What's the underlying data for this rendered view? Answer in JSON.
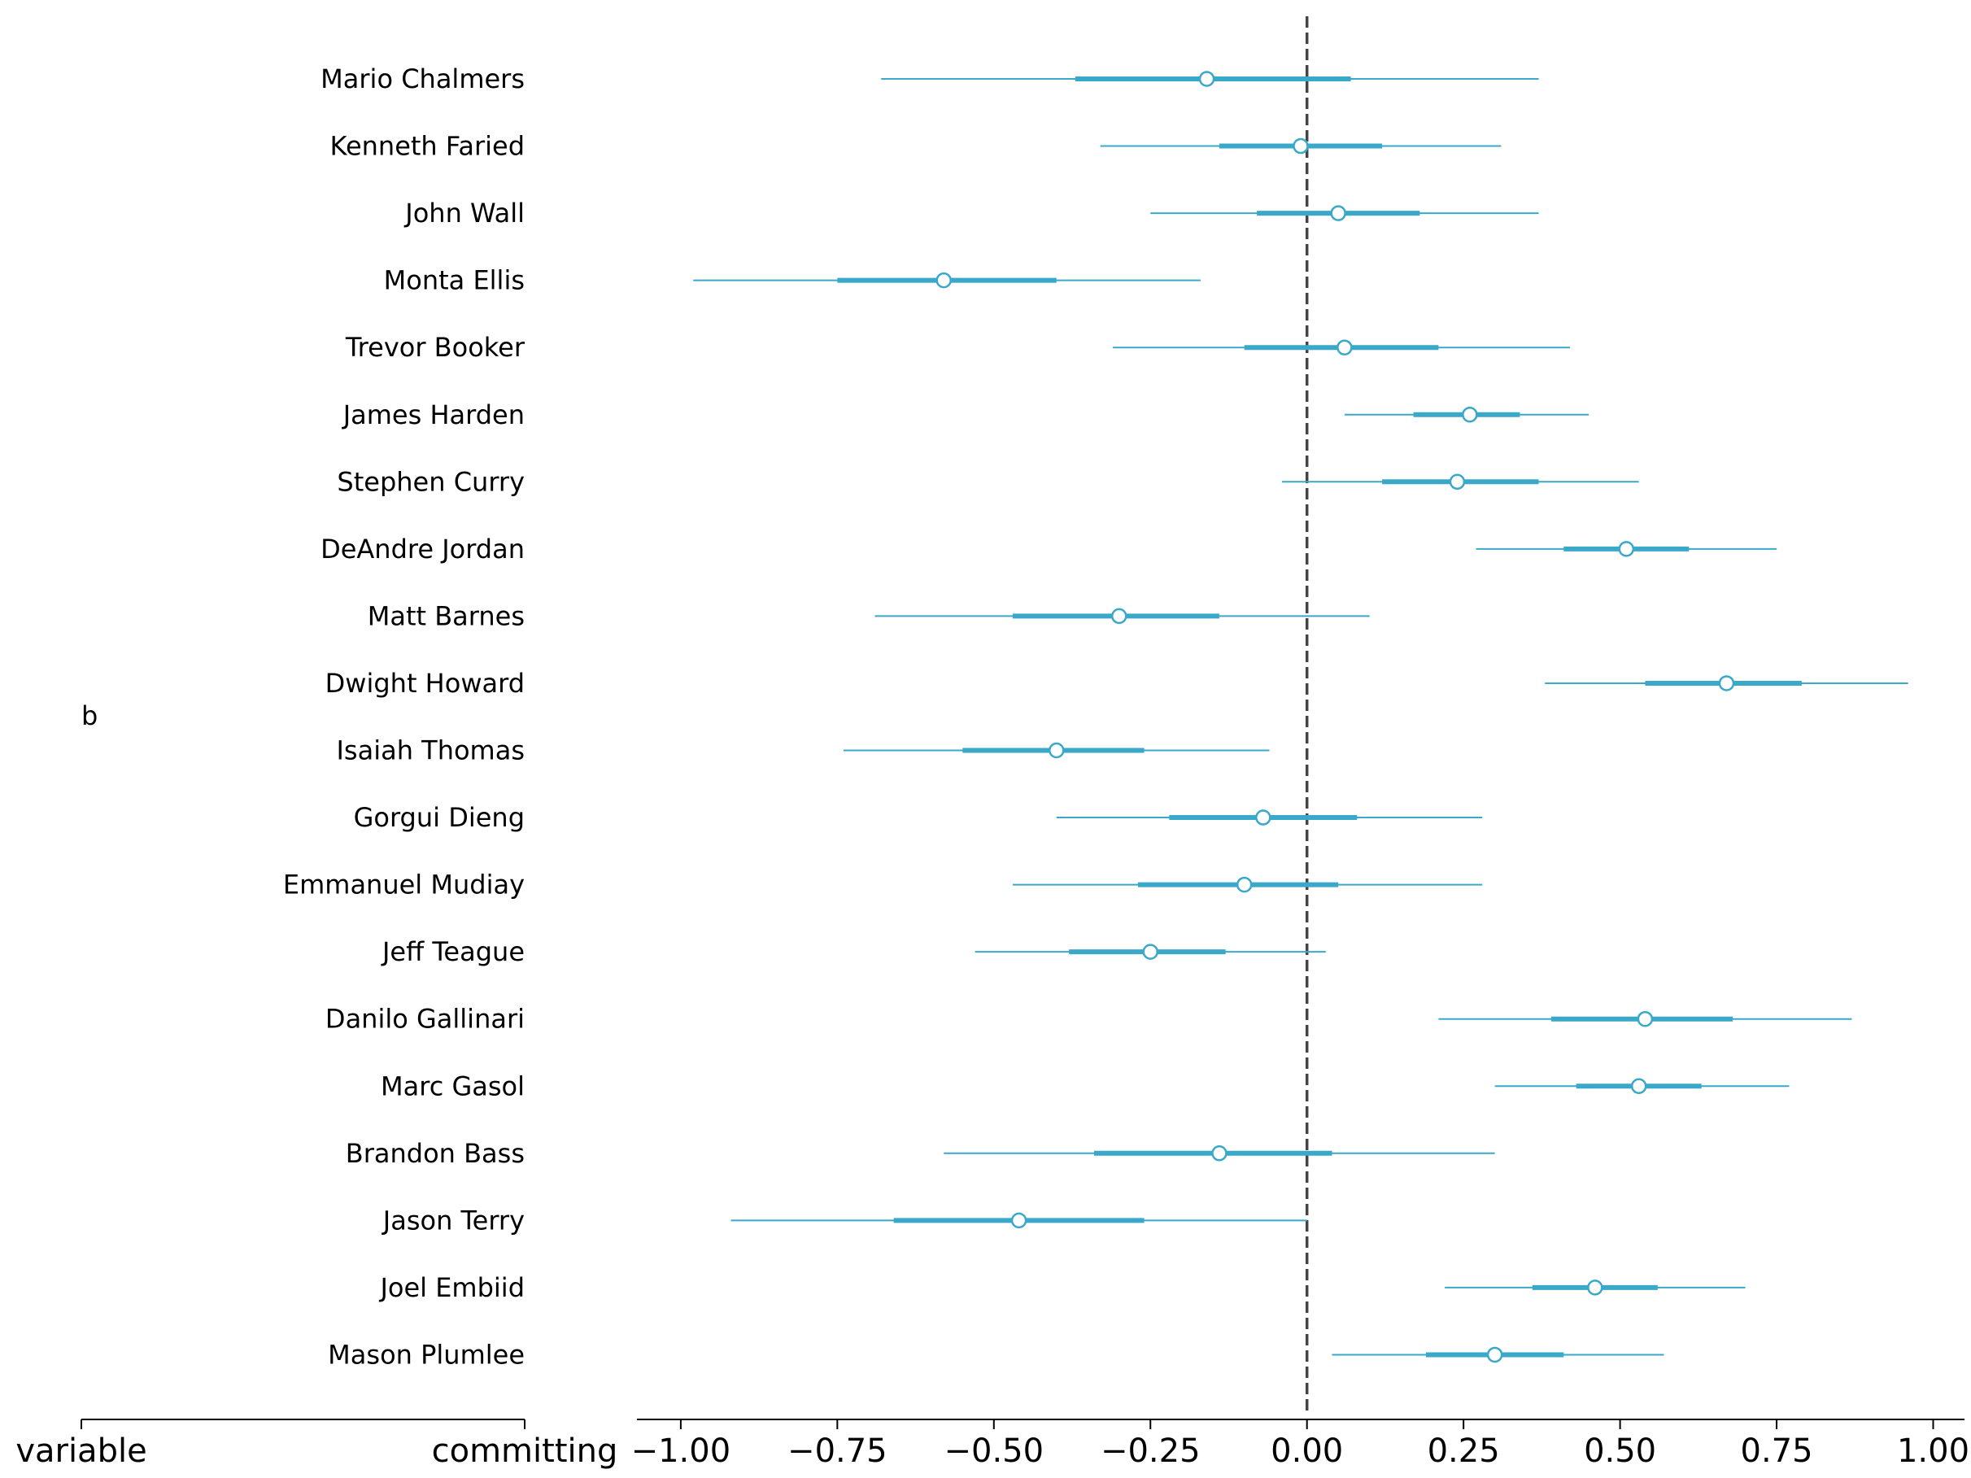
{
  "chart_data": {
    "type": "forest",
    "group_label": "b",
    "left_axis_labels": [
      "variable",
      "committing"
    ],
    "xlim": [
      -1.07,
      1.05
    ],
    "xticks": [
      -1.0,
      -0.75,
      -0.5,
      -0.25,
      0.0,
      0.25,
      0.5,
      0.75,
      1.0
    ],
    "xtick_labels": [
      "−1.00",
      "−0.75",
      "−0.50",
      "−0.25",
      "0.00",
      "0.25",
      "0.50",
      "0.75",
      "1.00"
    ],
    "reference_line": 0.0,
    "colors": {
      "series": "#3aa8c8",
      "reference": "#444444",
      "axis": "#000000"
    },
    "rows": [
      {
        "name": "Mario Chalmers",
        "mean": -0.16,
        "hdi_low": -0.68,
        "hdi_high": 0.37,
        "iqr_low": -0.37,
        "iqr_high": 0.07
      },
      {
        "name": "Kenneth Faried",
        "mean": -0.01,
        "hdi_low": -0.33,
        "hdi_high": 0.31,
        "iqr_low": -0.14,
        "iqr_high": 0.12
      },
      {
        "name": "John Wall",
        "mean": 0.05,
        "hdi_low": -0.25,
        "hdi_high": 0.37,
        "iqr_low": -0.08,
        "iqr_high": 0.18
      },
      {
        "name": "Monta Ellis",
        "mean": -0.58,
        "hdi_low": -0.98,
        "hdi_high": -0.17,
        "iqr_low": -0.75,
        "iqr_high": -0.4
      },
      {
        "name": "Trevor Booker",
        "mean": 0.06,
        "hdi_low": -0.31,
        "hdi_high": 0.42,
        "iqr_low": -0.1,
        "iqr_high": 0.21
      },
      {
        "name": "James Harden",
        "mean": 0.26,
        "hdi_low": 0.06,
        "hdi_high": 0.45,
        "iqr_low": 0.17,
        "iqr_high": 0.34
      },
      {
        "name": "Stephen Curry",
        "mean": 0.24,
        "hdi_low": -0.04,
        "hdi_high": 0.53,
        "iqr_low": 0.12,
        "iqr_high": 0.37
      },
      {
        "name": "DeAndre Jordan",
        "mean": 0.51,
        "hdi_low": 0.27,
        "hdi_high": 0.75,
        "iqr_low": 0.41,
        "iqr_high": 0.61
      },
      {
        "name": "Matt Barnes",
        "mean": -0.3,
        "hdi_low": -0.69,
        "hdi_high": 0.1,
        "iqr_low": -0.47,
        "iqr_high": -0.14
      },
      {
        "name": "Dwight Howard",
        "mean": 0.67,
        "hdi_low": 0.38,
        "hdi_high": 0.96,
        "iqr_low": 0.54,
        "iqr_high": 0.79
      },
      {
        "name": "Isaiah Thomas",
        "mean": -0.4,
        "hdi_low": -0.74,
        "hdi_high": -0.06,
        "iqr_low": -0.55,
        "iqr_high": -0.26
      },
      {
        "name": "Gorgui Dieng",
        "mean": -0.07,
        "hdi_low": -0.4,
        "hdi_high": 0.28,
        "iqr_low": -0.22,
        "iqr_high": 0.08
      },
      {
        "name": "Emmanuel Mudiay",
        "mean": -0.1,
        "hdi_low": -0.47,
        "hdi_high": 0.28,
        "iqr_low": -0.27,
        "iqr_high": 0.05
      },
      {
        "name": "Jeff Teague",
        "mean": -0.25,
        "hdi_low": -0.53,
        "hdi_high": 0.03,
        "iqr_low": -0.38,
        "iqr_high": -0.13
      },
      {
        "name": "Danilo Gallinari",
        "mean": 0.54,
        "hdi_low": 0.21,
        "hdi_high": 0.87,
        "iqr_low": 0.39,
        "iqr_high": 0.68
      },
      {
        "name": "Marc Gasol",
        "mean": 0.53,
        "hdi_low": 0.3,
        "hdi_high": 0.77,
        "iqr_low": 0.43,
        "iqr_high": 0.63
      },
      {
        "name": "Brandon Bass",
        "mean": -0.14,
        "hdi_low": -0.58,
        "hdi_high": 0.3,
        "iqr_low": -0.34,
        "iqr_high": 0.04
      },
      {
        "name": "Jason Terry",
        "mean": -0.46,
        "hdi_low": -0.92,
        "hdi_high": 0.0,
        "iqr_low": -0.66,
        "iqr_high": -0.26
      },
      {
        "name": "Joel Embiid",
        "mean": 0.46,
        "hdi_low": 0.22,
        "hdi_high": 0.7,
        "iqr_low": 0.36,
        "iqr_high": 0.56
      },
      {
        "name": "Mason Plumlee",
        "mean": 0.3,
        "hdi_low": 0.04,
        "hdi_high": 0.57,
        "iqr_low": 0.19,
        "iqr_high": 0.41
      }
    ]
  }
}
